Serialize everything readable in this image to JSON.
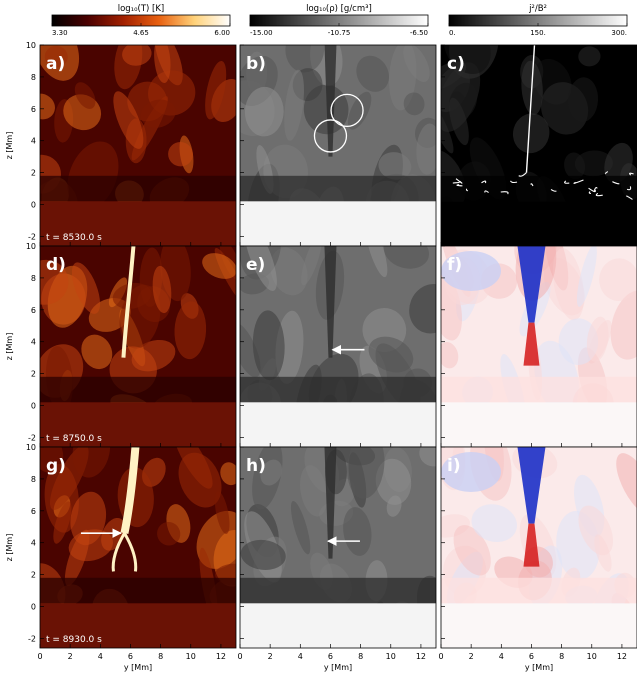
{
  "chart_data": {
    "type": "heatmap",
    "colorbars": [
      {
        "id": "temperature",
        "label": "log₁₀(T) [K]",
        "ticks": [
          "3.30",
          "4.65",
          "6.00"
        ],
        "range": [
          3.3,
          6.0
        ],
        "colormap": [
          "#000000",
          "#4a0000",
          "#a12000",
          "#e86010",
          "#ffd27a",
          "#ffffff"
        ]
      },
      {
        "id": "density",
        "label": "log₁₀(ρ) [g/cm³]",
        "ticks": [
          "-15.00",
          "-10.75",
          "-6.50"
        ],
        "range": [
          -15.0,
          -6.5
        ],
        "colormap": [
          "#000000",
          "#ffffff"
        ]
      },
      {
        "id": "current",
        "label": "j²/B²",
        "ticks": [
          "0.",
          "150.",
          "300."
        ],
        "range": [
          0,
          300
        ],
        "colormap": [
          "#000000",
          "#ffffff"
        ]
      }
    ],
    "x_axis": {
      "label": "y [Mm]",
      "ticks": [
        0,
        2,
        4,
        6,
        8,
        10,
        12
      ],
      "range": [
        0,
        13
      ]
    },
    "y_axis": {
      "label": "z [Mm]",
      "ticks": [
        -2,
        0,
        2,
        4,
        6,
        8,
        10
      ],
      "range": [
        -2.6,
        10
      ]
    },
    "rows": [
      {
        "time_label": "t =  8530.0 s",
        "panels": [
          {
            "label": "a)",
            "kind": "temperature"
          },
          {
            "label": "b)",
            "kind": "density",
            "circles": [
              {
                "y": 7.1,
                "z": 5.9
              },
              {
                "y": 6.0,
                "z": 4.3
              }
            ]
          },
          {
            "label": "c)",
            "kind": "current"
          }
        ]
      },
      {
        "time_label": "t =  8750.0 s",
        "panels": [
          {
            "label": "d)",
            "kind": "temperature"
          },
          {
            "label": "e)",
            "kind": "density",
            "arrow": {
              "y": 6.0,
              "z": 3.5
            }
          },
          {
            "label": "f)",
            "kind": "diverging"
          }
        ]
      },
      {
        "time_label": "t =  8930.0 s",
        "panels": [
          {
            "label": "g)",
            "kind": "temperature",
            "arrow": {
              "y": 5.5,
              "z": 4.6
            }
          },
          {
            "label": "h)",
            "kind": "density",
            "arrow": {
              "y": 5.7,
              "z": 4.1
            }
          },
          {
            "label": "i)",
            "kind": "diverging"
          }
        ]
      }
    ]
  }
}
